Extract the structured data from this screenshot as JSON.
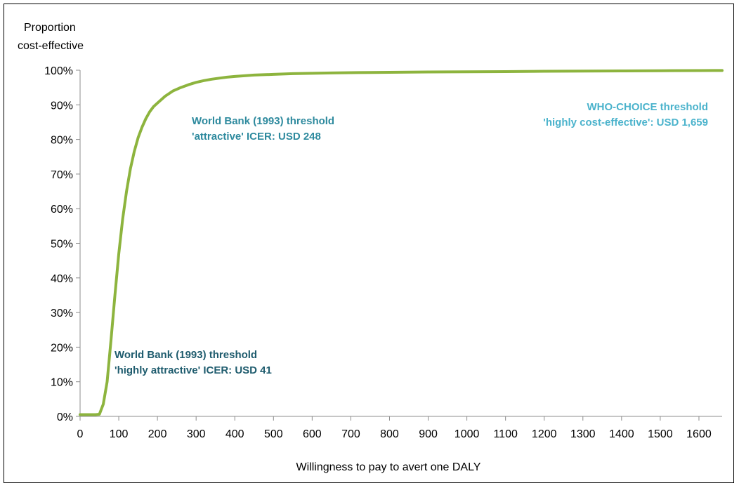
{
  "chart_data": {
    "type": "line",
    "title": "",
    "ylabel_lines": [
      "Proportion",
      "cost-effective"
    ],
    "xlabel": "Willingness to pay to avert one DALY",
    "xlim": [
      0,
      1660
    ],
    "ylim": [
      0,
      100
    ],
    "grid": false,
    "legend": "none",
    "x_ticks": [
      0,
      100,
      200,
      300,
      400,
      500,
      600,
      700,
      800,
      900,
      1000,
      1100,
      1200,
      1300,
      1400,
      1500,
      1600
    ],
    "y_ticks": [
      0,
      10,
      20,
      30,
      40,
      50,
      60,
      70,
      80,
      90,
      100
    ],
    "y_tick_labels": [
      "0%",
      "10%",
      "20%",
      "30%",
      "40%",
      "50%",
      "60%",
      "70%",
      "80%",
      "90%",
      "100%"
    ],
    "series": [
      {
        "color": "#8DB43E",
        "x": [
          0,
          20,
          40,
          50,
          60,
          70,
          80,
          90,
          100,
          110,
          120,
          130,
          140,
          150,
          160,
          170,
          180,
          190,
          200,
          220,
          240,
          260,
          280,
          300,
          320,
          340,
          360,
          380,
          400,
          450,
          500,
          550,
          600,
          650,
          700,
          750,
          800,
          900,
          1000,
          1100,
          1150,
          1200,
          1300,
          1400,
          1500,
          1530,
          1600,
          1660
        ],
        "values": [
          0.5,
          0.5,
          0.5,
          0.6,
          3.5,
          10,
          22,
          35,
          47,
          57,
          65,
          71.5,
          76.5,
          80.5,
          83.5,
          86,
          88,
          89.5,
          90.5,
          92.5,
          94,
          95,
          95.8,
          96.5,
          97,
          97.4,
          97.7,
          98,
          98.2,
          98.6,
          98.8,
          99,
          99.1,
          99.2,
          99.3,
          99.35,
          99.4,
          99.5,
          99.55,
          99.6,
          99.65,
          99.7,
          99.75,
          99.8,
          99.85,
          99.88,
          99.9,
          99.92
        ]
      }
    ],
    "annotations": [
      {
        "lines": [
          "World Bank (1993) threshold",
          "'highly attractive' ICER: USD 41"
        ],
        "color": "#1F5C6E"
      },
      {
        "lines": [
          "World Bank (1993) threshold",
          "'attractive' ICER: USD 248"
        ],
        "color": "#2E8A9E"
      },
      {
        "lines": [
          "WHO-CHOICE threshold",
          "'highly cost-effective': USD 1,659"
        ],
        "color": "#4BB3CC"
      }
    ]
  }
}
